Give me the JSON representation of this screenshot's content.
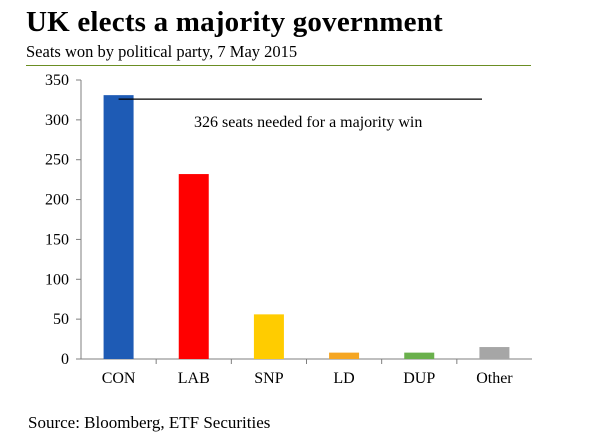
{
  "header": {
    "title": "UK elects a majority government",
    "subtitle": "Seats won by political party, 7 May 2015"
  },
  "footer": {
    "source": "Source: Bloomberg, ETF Securities"
  },
  "chart_data": {
    "type": "bar",
    "categories": [
      "CON",
      "LAB",
      "SNP",
      "LD",
      "DUP",
      "Other"
    ],
    "values": [
      331,
      232,
      56,
      8,
      8,
      15
    ],
    "colors": [
      "#1e5bb5",
      "#ff0000",
      "#ffcc00",
      "#f5a623",
      "#6ab04c",
      "#a6a6a6"
    ],
    "ylim": [
      0,
      350
    ],
    "yticks": [
      0,
      50,
      100,
      150,
      200,
      250,
      300,
      350
    ],
    "grid": false,
    "reference_line": {
      "value": 326,
      "label": "326 seats needed for a majority win",
      "color": "#000000"
    },
    "xlabel": "",
    "ylabel": ""
  }
}
